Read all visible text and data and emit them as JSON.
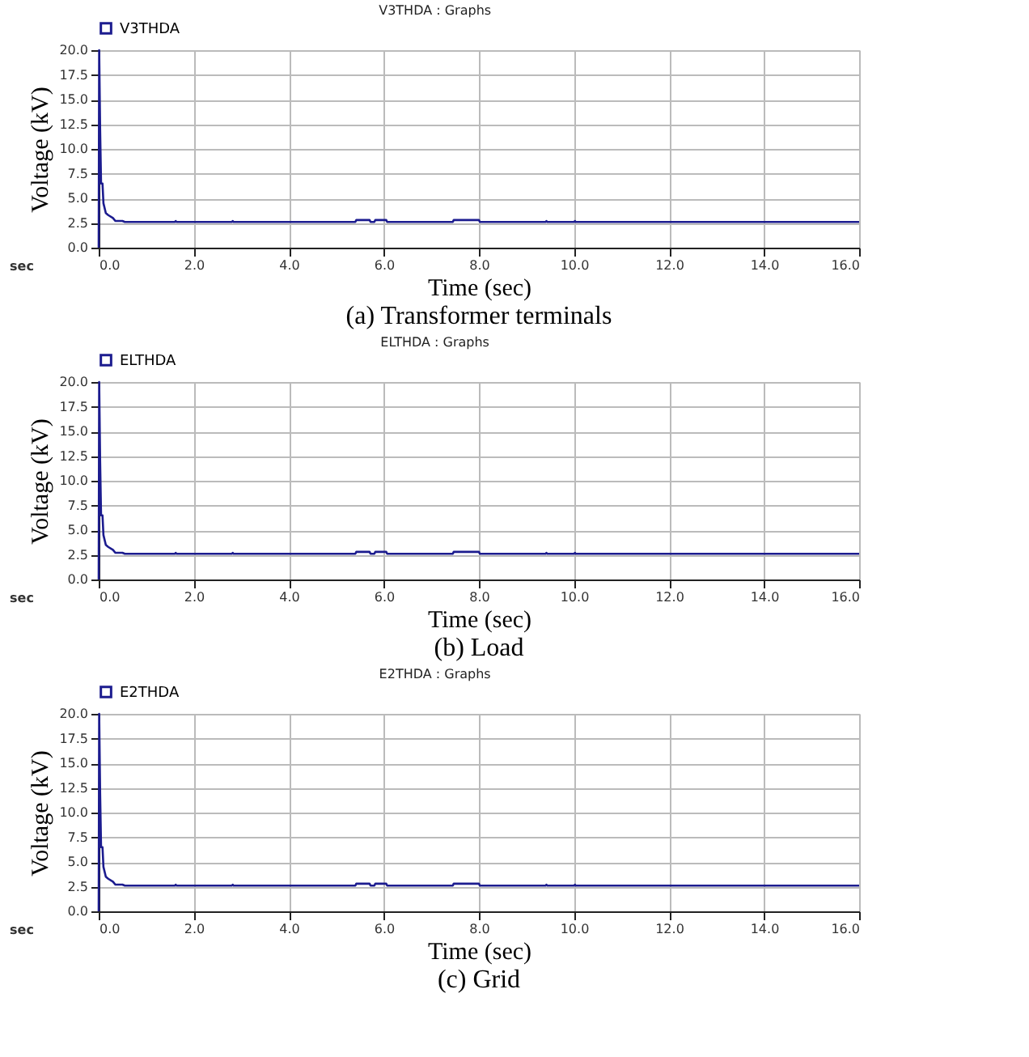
{
  "chart_data": [
    {
      "type": "line",
      "title": "V3THDA : Graphs",
      "xlabel": "Time (sec)",
      "ylabel": "Voltage (kV)",
      "annotations": [
        "sec",
        "(a) Transformer terminals"
      ],
      "xlim": [
        0,
        16
      ],
      "xticks": [
        {
          "value": 0,
          "label": "0.0"
        },
        {
          "value": 2,
          "label": "2.0"
        },
        {
          "value": 4,
          "label": "4.0"
        },
        {
          "value": 6,
          "label": "6.0"
        },
        {
          "value": 8,
          "label": "8.0"
        },
        {
          "value": 10,
          "label": "10.0"
        },
        {
          "value": 12,
          "label": "12.0"
        },
        {
          "value": 14,
          "label": "14.0"
        },
        {
          "value": 16,
          "label": "16.0"
        }
      ],
      "ylim": [
        0,
        20
      ],
      "yticks": [
        {
          "value": 0,
          "label": "0.0"
        },
        {
          "value": 2.5,
          "label": "2.5"
        },
        {
          "value": 5,
          "label": "5.0"
        },
        {
          "value": 7.5,
          "label": "7.5"
        },
        {
          "value": 10,
          "label": "10.0"
        },
        {
          "value": 12.5,
          "label": "12.5"
        },
        {
          "value": 15,
          "label": "15.0"
        },
        {
          "value": 17.5,
          "label": "17.5"
        },
        {
          "value": 20,
          "label": "20.0"
        }
      ],
      "grid": true,
      "legend": "top left",
      "series": [
        {
          "name": "V3THDA",
          "color": "#1c1c8f",
          "x": [
            0,
            0.01,
            0.03,
            0.05,
            0.08,
            0.1,
            0.15,
            0.2,
            0.3,
            0.35,
            0.5,
            0.55,
            1.6,
            1.62,
            1.64,
            2.8,
            2.82,
            2.84,
            5.4,
            5.42,
            5.7,
            5.72,
            5.8,
            5.82,
            6.05,
            6.07,
            7.45,
            7.47,
            8.0,
            8.02,
            9.4,
            9.42,
            9.44,
            10.0,
            10.02,
            10.04,
            16
          ],
          "values": [
            0,
            20,
            12,
            6.5,
            6.5,
            4.5,
            3.5,
            3.3,
            3.0,
            2.7,
            2.7,
            2.6,
            2.6,
            2.7,
            2.6,
            2.6,
            2.7,
            2.6,
            2.6,
            2.8,
            2.8,
            2.6,
            2.6,
            2.8,
            2.8,
            2.6,
            2.6,
            2.8,
            2.8,
            2.6,
            2.6,
            2.7,
            2.6,
            2.6,
            2.7,
            2.6,
            2.6
          ]
        }
      ]
    },
    {
      "type": "line",
      "title": "ELTHDA : Graphs",
      "xlabel": "Time (sec)",
      "ylabel": "Voltage (kV)",
      "annotations": [
        "sec",
        "(b) Load"
      ],
      "xlim": [
        0,
        16
      ],
      "xticks": [
        {
          "value": 0,
          "label": "0.0"
        },
        {
          "value": 2,
          "label": "2.0"
        },
        {
          "value": 4,
          "label": "4.0"
        },
        {
          "value": 6,
          "label": "6.0"
        },
        {
          "value": 8,
          "label": "8.0"
        },
        {
          "value": 10,
          "label": "10.0"
        },
        {
          "value": 12,
          "label": "12.0"
        },
        {
          "value": 14,
          "label": "14.0"
        },
        {
          "value": 16,
          "label": "16.0"
        }
      ],
      "ylim": [
        0,
        20
      ],
      "yticks": [
        {
          "value": 0,
          "label": "0.0"
        },
        {
          "value": 2.5,
          "label": "2.5"
        },
        {
          "value": 5,
          "label": "5.0"
        },
        {
          "value": 7.5,
          "label": "7.5"
        },
        {
          "value": 10,
          "label": "10.0"
        },
        {
          "value": 12.5,
          "label": "12.5"
        },
        {
          "value": 15,
          "label": "15.0"
        },
        {
          "value": 17.5,
          "label": "17.5"
        },
        {
          "value": 20,
          "label": "20.0"
        }
      ],
      "grid": true,
      "legend": "top left",
      "series": [
        {
          "name": "ELTHDA",
          "color": "#1c1c8f",
          "x": [
            0,
            0.01,
            0.03,
            0.05,
            0.08,
            0.1,
            0.15,
            0.2,
            0.3,
            0.35,
            0.5,
            0.55,
            1.6,
            1.62,
            1.64,
            2.8,
            2.82,
            2.84,
            5.4,
            5.42,
            5.7,
            5.72,
            5.8,
            5.82,
            6.05,
            6.07,
            7.45,
            7.47,
            8.0,
            8.02,
            9.4,
            9.42,
            9.44,
            10.0,
            10.02,
            10.04,
            16
          ],
          "values": [
            0,
            20,
            12,
            6.5,
            6.5,
            4.5,
            3.5,
            3.3,
            3.0,
            2.7,
            2.7,
            2.6,
            2.6,
            2.7,
            2.6,
            2.6,
            2.7,
            2.6,
            2.6,
            2.8,
            2.8,
            2.6,
            2.6,
            2.8,
            2.8,
            2.6,
            2.6,
            2.8,
            2.8,
            2.6,
            2.6,
            2.7,
            2.6,
            2.6,
            2.7,
            2.6,
            2.6
          ]
        }
      ]
    },
    {
      "type": "line",
      "title": "E2THDA : Graphs",
      "xlabel": "Time (sec)",
      "ylabel": "Voltage (kV)",
      "annotations": [
        "sec",
        "(c) Grid"
      ],
      "xlim": [
        0,
        16
      ],
      "xticks": [
        {
          "value": 0,
          "label": "0.0"
        },
        {
          "value": 2,
          "label": "2.0"
        },
        {
          "value": 4,
          "label": "4.0"
        },
        {
          "value": 6,
          "label": "6.0"
        },
        {
          "value": 8,
          "label": "8.0"
        },
        {
          "value": 10,
          "label": "10.0"
        },
        {
          "value": 12,
          "label": "12.0"
        },
        {
          "value": 14,
          "label": "14.0"
        },
        {
          "value": 16,
          "label": "16.0"
        }
      ],
      "ylim": [
        0,
        20
      ],
      "yticks": [
        {
          "value": 0,
          "label": "0.0"
        },
        {
          "value": 2.5,
          "label": "2.5"
        },
        {
          "value": 5,
          "label": "5.0"
        },
        {
          "value": 7.5,
          "label": "7.5"
        },
        {
          "value": 10,
          "label": "10.0"
        },
        {
          "value": 12.5,
          "label": "12.5"
        },
        {
          "value": 15,
          "label": "15.0"
        },
        {
          "value": 17.5,
          "label": "17.5"
        },
        {
          "value": 20,
          "label": "20.0"
        }
      ],
      "grid": true,
      "legend": "top left",
      "series": [
        {
          "name": "E2THDA",
          "color": "#1c1c8f",
          "x": [
            0,
            0.01,
            0.03,
            0.05,
            0.08,
            0.1,
            0.15,
            0.2,
            0.3,
            0.35,
            0.5,
            0.55,
            1.6,
            1.62,
            1.64,
            2.8,
            2.82,
            2.84,
            5.4,
            5.42,
            5.7,
            5.72,
            5.8,
            5.82,
            6.05,
            6.07,
            7.45,
            7.47,
            8.0,
            8.02,
            9.4,
            9.42,
            9.44,
            10.0,
            10.02,
            10.04,
            16
          ],
          "values": [
            0,
            20,
            12,
            6.5,
            6.5,
            4.5,
            3.5,
            3.3,
            3.0,
            2.7,
            2.7,
            2.6,
            2.6,
            2.7,
            2.6,
            2.6,
            2.7,
            2.6,
            2.6,
            2.8,
            2.8,
            2.6,
            2.6,
            2.8,
            2.8,
            2.6,
            2.6,
            2.8,
            2.8,
            2.6,
            2.6,
            2.7,
            2.6,
            2.6,
            2.7,
            2.6,
            2.6
          ]
        }
      ]
    }
  ]
}
